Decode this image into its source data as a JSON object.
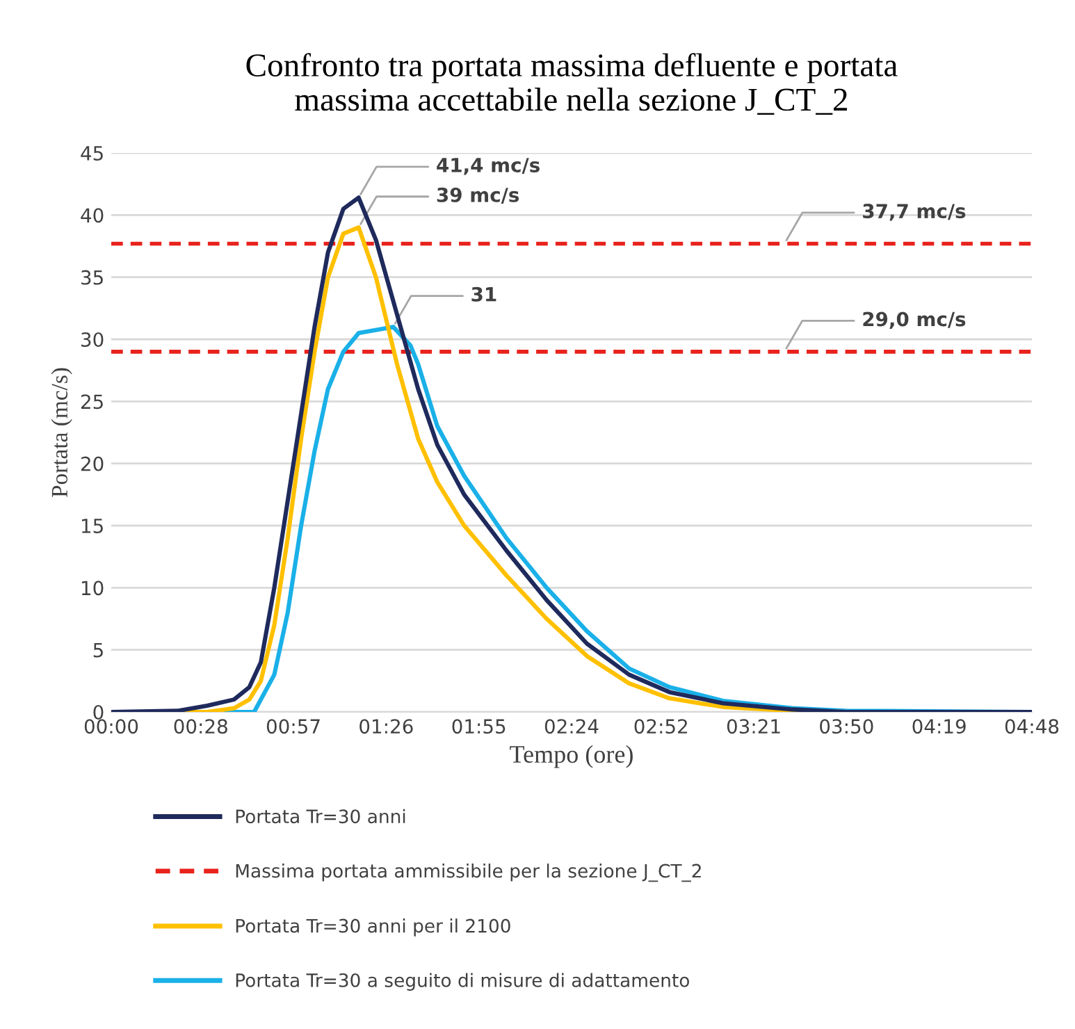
{
  "chart_data": {
    "type": "line",
    "title": "Confronto tra portata massima defluente e portata\nmassima accettabile nella sezione J_CT_2",
    "xlabel": "Tempo (ore)",
    "ylabel": "Portata (mc/s)",
    "xlim": [
      0,
      4.8
    ],
    "xticks": [
      {
        "value": 0,
        "label": "00:00"
      },
      {
        "value": 0.4667,
        "label": "00:28"
      },
      {
        "value": 0.95,
        "label": "00:57"
      },
      {
        "value": 1.4333,
        "label": "01:26"
      },
      {
        "value": 1.9167,
        "label": "01:55"
      },
      {
        "value": 2.4,
        "label": "02:24"
      },
      {
        "value": 2.8667,
        "label": "02:52"
      },
      {
        "value": 3.35,
        "label": "03:21"
      },
      {
        "value": 3.8333,
        "label": "03:50"
      },
      {
        "value": 4.3167,
        "label": "04:19"
      },
      {
        "value": 4.8,
        "label": "04:48"
      }
    ],
    "ylim": [
      0,
      45
    ],
    "yticks": [
      0,
      5,
      10,
      15,
      20,
      25,
      30,
      35,
      40,
      45
    ],
    "grid": "y",
    "legend": "bottom",
    "marker": "none",
    "line_style": "solid",
    "series": [
      {
        "name": "Portata Tr=30 anni",
        "color": "#1f2a5c",
        "x": [
          0,
          0.35,
          0.5,
          0.64,
          0.72,
          0.78,
          0.85,
          0.92,
          0.99,
          1.06,
          1.13,
          1.21,
          1.29,
          1.38,
          1.49,
          1.6,
          1.7,
          1.84,
          2.06,
          2.27,
          2.48,
          2.7,
          2.91,
          3.19,
          3.55,
          3.83,
          4.8
        ],
        "values": [
          0,
          0.1,
          0.5,
          1,
          2,
          4,
          10,
          17,
          24,
          31,
          37,
          40.5,
          41.4,
          38,
          32,
          26,
          21.5,
          17.5,
          13,
          9,
          5.5,
          3,
          1.6,
          0.7,
          0.2,
          0,
          0
        ]
      },
      {
        "name": "Portata Tr=30 anni per il 2100",
        "color": "#ffc000",
        "x": [
          0,
          0.5,
          0.64,
          0.72,
          0.78,
          0.85,
          0.92,
          0.99,
          1.06,
          1.13,
          1.21,
          1.29,
          1.38,
          1.49,
          1.6,
          1.7,
          1.84,
          2.06,
          2.27,
          2.48,
          2.7,
          2.91,
          3.19,
          3.55,
          3.83,
          4.8
        ],
        "values": [
          0,
          0,
          0.3,
          1,
          2.5,
          7,
          14,
          22,
          29,
          35,
          38.5,
          39,
          35,
          28,
          22,
          18.5,
          15,
          11,
          7.5,
          4.5,
          2.3,
          1.1,
          0.4,
          0.1,
          0,
          0
        ]
      },
      {
        "name": "Portata Tr=30 a seguito di misure di adattamento",
        "color": "#1ab0e8",
        "x": [
          0,
          0.745,
          0.85,
          0.92,
          0.99,
          1.06,
          1.13,
          1.21,
          1.29,
          1.47,
          1.56,
          1.6,
          1.7,
          1.84,
          2.06,
          2.27,
          2.48,
          2.7,
          2.91,
          3.19,
          3.55,
          3.83,
          4.8
        ],
        "values": [
          0,
          0,
          3,
          8,
          15,
          21,
          26,
          29,
          30.5,
          31,
          29.5,
          28,
          23,
          19,
          14,
          10,
          6.5,
          3.5,
          2,
          0.9,
          0.3,
          0.1,
          0
        ]
      }
    ],
    "ref_lines": [
      {
        "axis": "y",
        "value": 37.7,
        "label": "Massima portata ammissibile per la sezione J_CT_2",
        "color": "#e8221c",
        "line_style": "dashed"
      },
      {
        "axis": "y",
        "value": 29.0,
        "color": "#e8221c",
        "line_style": "dashed"
      }
    ],
    "annotations": [
      {
        "text": "41,4 mc/s",
        "x": 1.29,
        "y": 41.4
      },
      {
        "text": "39 mc/s",
        "x": 1.29,
        "y": 39
      },
      {
        "text": "31",
        "x": 1.47,
        "y": 31
      },
      {
        "text": "37,7 mc/s",
        "x": 3.51,
        "y": 37.7
      },
      {
        "text": "29,0 mc/s",
        "x": 3.51,
        "y": 29.0
      }
    ]
  }
}
